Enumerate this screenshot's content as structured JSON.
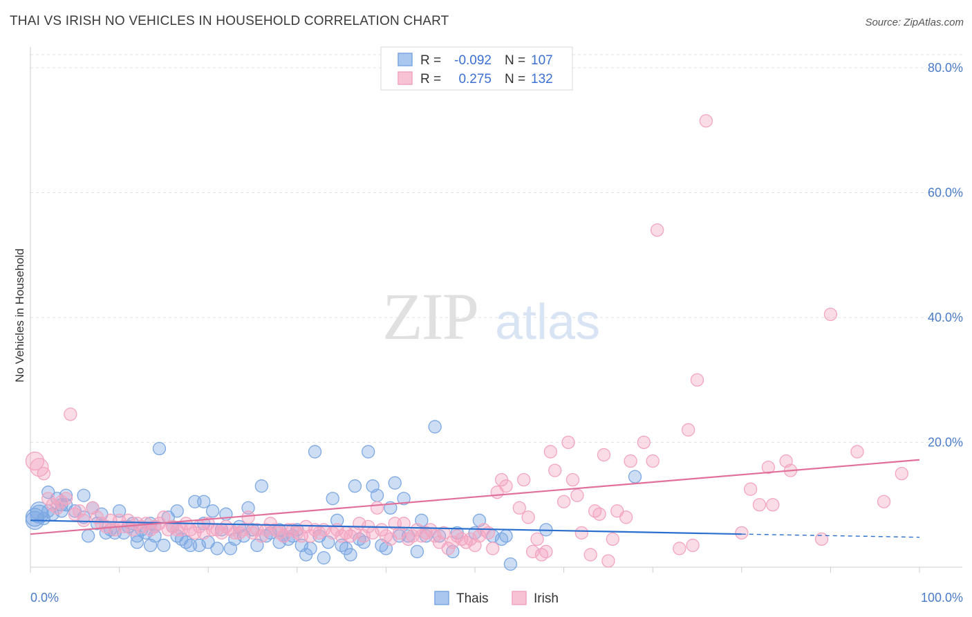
{
  "title": "THAI VS IRISH NO VEHICLES IN HOUSEHOLD CORRELATION CHART",
  "source": "Source: ZipAtlas.com",
  "watermark": {
    "zip": "ZIP",
    "atlas": "atlas"
  },
  "chart_data": {
    "type": "scatter",
    "ylabel": "No Vehicles in Household",
    "xlabel": "",
    "xlim": [
      0,
      100
    ],
    "ylim": [
      0,
      82
    ],
    "x_tick_labels": [
      {
        "value": 0,
        "label": "0.0%"
      },
      {
        "value": 100,
        "label": "100.0%"
      }
    ],
    "y_tick_labels": [
      {
        "value": 20,
        "label": "20.0%"
      },
      {
        "value": 40,
        "label": "40.0%"
      },
      {
        "value": 60,
        "label": "60.0%"
      },
      {
        "value": 80,
        "label": "80.0%"
      }
    ],
    "grid": true,
    "legend": {
      "placement": "top-center",
      "rows": [
        {
          "r_label": "R =",
          "r_value": "-0.092",
          "n_label": "N =",
          "n_value": "107"
        },
        {
          "r_label": "R =",
          "r_value": "0.275",
          "n_label": "N =",
          "n_value": "132"
        }
      ]
    },
    "series": [
      {
        "name": "Thais",
        "color": "#7ba7e3",
        "line_color": "#2a6fce",
        "trend": {
          "x": [
            0,
            80,
            100
          ],
          "y": [
            7.5,
            5.3,
            4.8
          ],
          "dashed_from": 80
        },
        "points": [
          [
            0.5,
            8
          ],
          [
            0.5,
            7.5
          ],
          [
            1,
            9
          ],
          [
            1,
            8.5
          ],
          [
            1.5,
            7.8
          ],
          [
            2,
            12
          ],
          [
            2,
            9
          ],
          [
            2.5,
            8.5
          ],
          [
            3,
            11
          ],
          [
            3.5,
            10
          ],
          [
            3.5,
            9
          ],
          [
            4,
            11.5
          ],
          [
            4,
            10
          ],
          [
            5,
            9
          ],
          [
            6,
            11.5
          ],
          [
            6,
            8
          ],
          [
            6.5,
            5
          ],
          [
            7,
            9.5
          ],
          [
            7.5,
            7
          ],
          [
            8,
            8.5
          ],
          [
            8.5,
            5.5
          ],
          [
            9,
            6
          ],
          [
            9.5,
            5.5
          ],
          [
            10,
            9
          ],
          [
            10.5,
            5.5
          ],
          [
            11,
            6.5
          ],
          [
            11.5,
            7
          ],
          [
            12,
            5
          ],
          [
            12,
            4
          ],
          [
            12.5,
            6
          ],
          [
            13,
            5.5
          ],
          [
            13.5,
            3.5
          ],
          [
            13.5,
            7
          ],
          [
            14,
            6.5
          ],
          [
            14,
            5
          ],
          [
            14.5,
            19
          ],
          [
            15,
            3.5
          ],
          [
            15.5,
            8
          ],
          [
            16,
            6.5
          ],
          [
            16.5,
            5
          ],
          [
            16.5,
            9
          ],
          [
            17,
            4.5
          ],
          [
            17.5,
            4
          ],
          [
            18,
            3.5
          ],
          [
            18.5,
            10.5
          ],
          [
            19,
            3.5
          ],
          [
            19.5,
            10.5
          ],
          [
            19.5,
            7
          ],
          [
            20,
            4
          ],
          [
            20.5,
            9
          ],
          [
            21,
            3
          ],
          [
            21.5,
            6
          ],
          [
            22,
            8.5
          ],
          [
            22.5,
            3
          ],
          [
            23,
            4.5
          ],
          [
            23.5,
            6.5
          ],
          [
            24,
            5
          ],
          [
            24.5,
            9.5
          ],
          [
            25,
            6
          ],
          [
            25.5,
            3.5
          ],
          [
            26,
            13
          ],
          [
            26.5,
            5
          ],
          [
            27,
            5.5
          ],
          [
            28,
            6
          ],
          [
            28,
            4
          ],
          [
            28.5,
            5
          ],
          [
            29,
            4.5
          ],
          [
            29.5,
            5
          ],
          [
            30,
            6
          ],
          [
            30.5,
            3.5
          ],
          [
            31,
            2
          ],
          [
            31.5,
            3
          ],
          [
            32,
            18.5
          ],
          [
            32.5,
            5
          ],
          [
            33,
            1.5
          ],
          [
            33.5,
            4
          ],
          [
            34,
            11
          ],
          [
            34.5,
            7.5
          ],
          [
            35,
            3.5
          ],
          [
            35.5,
            3
          ],
          [
            36,
            2
          ],
          [
            36.5,
            13
          ],
          [
            37,
            4.5
          ],
          [
            37.5,
            4
          ],
          [
            38,
            18.5
          ],
          [
            38.5,
            13
          ],
          [
            39,
            11.5
          ],
          [
            39.5,
            3.5
          ],
          [
            40,
            3
          ],
          [
            40.5,
            9.5
          ],
          [
            41,
            13.5
          ],
          [
            41.5,
            5
          ],
          [
            42,
            11
          ],
          [
            42.5,
            5
          ],
          [
            43.5,
            2.5
          ],
          [
            44,
            7.5
          ],
          [
            44.5,
            5
          ],
          [
            45.5,
            22.5
          ],
          [
            46,
            5
          ],
          [
            47.5,
            2.5
          ],
          [
            48,
            5.5
          ],
          [
            50,
            5.5
          ],
          [
            50.5,
            7.5
          ],
          [
            52,
            5
          ],
          [
            53,
            4.5
          ],
          [
            53.5,
            5
          ],
          [
            54,
            0.5
          ],
          [
            58,
            6
          ],
          [
            68,
            14.5
          ]
        ]
      },
      {
        "name": "Irish",
        "color": "#f3a4bf",
        "line_color": "#e0709a",
        "trend": {
          "x": [
            0,
            100
          ],
          "y": [
            5.3,
            17.2
          ]
        },
        "points": [
          [
            0.5,
            17
          ],
          [
            1,
            16
          ],
          [
            1.5,
            15
          ],
          [
            2,
            11
          ],
          [
            2.5,
            10
          ],
          [
            3,
            9.5
          ],
          [
            3.5,
            10.5
          ],
          [
            4,
            11
          ],
          [
            4.5,
            24.5
          ],
          [
            5,
            8.5
          ],
          [
            5.5,
            9
          ],
          [
            6,
            7.5
          ],
          [
            7,
            9.5
          ],
          [
            7.5,
            8
          ],
          [
            8,
            7
          ],
          [
            8.5,
            6.5
          ],
          [
            9,
            7.5
          ],
          [
            9.5,
            6
          ],
          [
            10,
            7.5
          ],
          [
            10.5,
            6.5
          ],
          [
            11,
            7.5
          ],
          [
            11.5,
            6
          ],
          [
            12,
            7
          ],
          [
            12.5,
            6.5
          ],
          [
            13,
            7
          ],
          [
            13.5,
            6
          ],
          [
            14,
            6.5
          ],
          [
            14.5,
            7
          ],
          [
            15,
            8
          ],
          [
            15.5,
            6
          ],
          [
            16,
            6.5
          ],
          [
            16.5,
            6
          ],
          [
            17,
            6
          ],
          [
            17.5,
            7
          ],
          [
            18,
            6
          ],
          [
            18.5,
            5.5
          ],
          [
            19,
            6.5
          ],
          [
            19.5,
            5.5
          ],
          [
            20,
            7
          ],
          [
            20.5,
            6
          ],
          [
            21,
            6
          ],
          [
            21.5,
            5.5
          ],
          [
            22,
            6.5
          ],
          [
            22.5,
            6
          ],
          [
            23,
            5.5
          ],
          [
            23.5,
            5.5
          ],
          [
            24,
            6
          ],
          [
            24.5,
            8
          ],
          [
            25,
            5.5
          ],
          [
            25.5,
            6
          ],
          [
            26,
            5
          ],
          [
            26.5,
            6
          ],
          [
            27,
            7
          ],
          [
            27.5,
            6
          ],
          [
            28,
            5.5
          ],
          [
            28.5,
            5
          ],
          [
            29,
            6
          ],
          [
            29.5,
            6
          ],
          [
            30,
            5.5
          ],
          [
            30.5,
            5
          ],
          [
            31,
            6.5
          ],
          [
            31.5,
            5
          ],
          [
            32,
            6
          ],
          [
            32.5,
            5.5
          ],
          [
            33,
            6
          ],
          [
            34,
            5.5
          ],
          [
            34.5,
            6
          ],
          [
            35,
            5
          ],
          [
            35.5,
            5.5
          ],
          [
            36,
            5
          ],
          [
            36.5,
            5.5
          ],
          [
            37,
            7
          ],
          [
            37.5,
            5
          ],
          [
            38,
            6.5
          ],
          [
            38.5,
            5.5
          ],
          [
            39,
            9.5
          ],
          [
            39.5,
            6
          ],
          [
            40,
            5
          ],
          [
            40.5,
            4.5
          ],
          [
            41,
            7
          ],
          [
            41.5,
            5.5
          ],
          [
            42,
            7
          ],
          [
            42.5,
            4.5
          ],
          [
            43,
            5
          ],
          [
            43.5,
            6
          ],
          [
            44,
            5
          ],
          [
            44.5,
            5.5
          ],
          [
            45,
            6
          ],
          [
            45.5,
            5
          ],
          [
            46,
            4
          ],
          [
            46.5,
            5.5
          ],
          [
            47,
            3
          ],
          [
            47.5,
            4
          ],
          [
            48,
            5
          ],
          [
            48.5,
            4.5
          ],
          [
            49,
            4
          ],
          [
            49.5,
            4.5
          ],
          [
            50,
            3.5
          ],
          [
            50.5,
            5
          ],
          [
            51,
            6
          ],
          [
            51.5,
            5.5
          ],
          [
            52,
            3
          ],
          [
            52.5,
            12
          ],
          [
            53,
            14
          ],
          [
            53.5,
            13
          ],
          [
            55,
            9.5
          ],
          [
            55.5,
            14
          ],
          [
            56,
            8
          ],
          [
            56.5,
            2.5
          ],
          [
            57,
            4.5
          ],
          [
            57.5,
            2
          ],
          [
            58,
            2.5
          ],
          [
            58.5,
            18.5
          ],
          [
            59,
            15.5
          ],
          [
            60,
            10.5
          ],
          [
            60.5,
            20
          ],
          [
            61,
            14
          ],
          [
            61.5,
            11.5
          ],
          [
            62,
            5.5
          ],
          [
            63,
            2
          ],
          [
            63.5,
            9
          ],
          [
            64,
            8.5
          ],
          [
            64.5,
            18
          ],
          [
            65,
            1
          ],
          [
            65.5,
            4.5
          ],
          [
            66,
            9
          ],
          [
            67,
            8
          ],
          [
            67.5,
            17
          ],
          [
            69,
            20
          ],
          [
            70,
            17
          ],
          [
            70.5,
            54
          ],
          [
            73,
            3
          ],
          [
            74,
            22
          ],
          [
            74.5,
            3.5
          ],
          [
            75,
            30
          ],
          [
            76,
            71.5
          ],
          [
            80,
            5.5
          ],
          [
            81,
            12.5
          ],
          [
            82,
            10
          ],
          [
            83,
            16
          ],
          [
            83.5,
            10
          ],
          [
            85,
            17
          ],
          [
            85.5,
            15.5
          ],
          [
            89,
            4.5
          ],
          [
            90,
            40.5
          ],
          [
            93,
            18.5
          ],
          [
            96,
            10.5
          ],
          [
            98,
            15
          ]
        ]
      }
    ]
  },
  "bottom_legend": [
    {
      "label": "Thais",
      "color": "#a9c7ef",
      "border": "#7ba7e3"
    },
    {
      "label": "Irish",
      "color": "#f7c2d4",
      "border": "#f3a4bf"
    }
  ]
}
